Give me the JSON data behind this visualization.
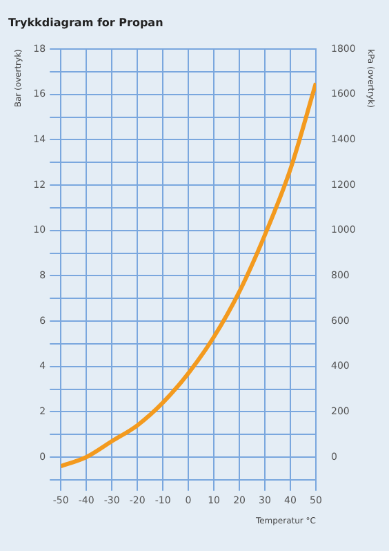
{
  "chart_data": {
    "type": "line",
    "title": "Trykkdiagram for Propan",
    "xlabel": "Temperatur °C",
    "ylabel": "Bar (overtryk)",
    "y2label": "kPa (overtryk)",
    "x": [
      -50,
      -40,
      -30,
      -20,
      -10,
      0,
      10,
      20,
      30,
      40,
      50
    ],
    "series": [
      {
        "color": "#f39a1e",
        "values": [
          -0.4,
          0,
          0.7,
          1.4,
          2.4,
          3.7,
          5.3,
          7.3,
          9.8,
          12.7,
          16.5
        ]
      }
    ],
    "xlim": [
      -50,
      50
    ],
    "xticks": [
      -50,
      -40,
      -30,
      -20,
      -10,
      0,
      10,
      20,
      30,
      40,
      50
    ],
    "ylim": [
      -1,
      18
    ],
    "yticks": [
      {
        "value": -1,
        "label": null
      },
      0,
      {
        "value": 1,
        "label": null
      },
      2,
      {
        "value": 3,
        "label": null
      },
      4,
      {
        "value": 5,
        "label": null
      },
      6,
      {
        "value": 7,
        "label": null
      },
      8,
      {
        "value": 9,
        "label": null
      },
      10,
      {
        "value": 11,
        "label": null
      },
      12,
      {
        "value": 13,
        "label": null
      },
      14,
      {
        "value": 15,
        "label": null
      },
      16,
      {
        "value": 17,
        "label": null
      },
      18
    ],
    "y2lim": [
      -100,
      1800
    ],
    "y2ticks": [
      0,
      200,
      400,
      600,
      800,
      1000,
      1200,
      1400,
      1600,
      1800
    ],
    "grid": true,
    "legend": false,
    "marker": "none",
    "line_style": "solid"
  }
}
